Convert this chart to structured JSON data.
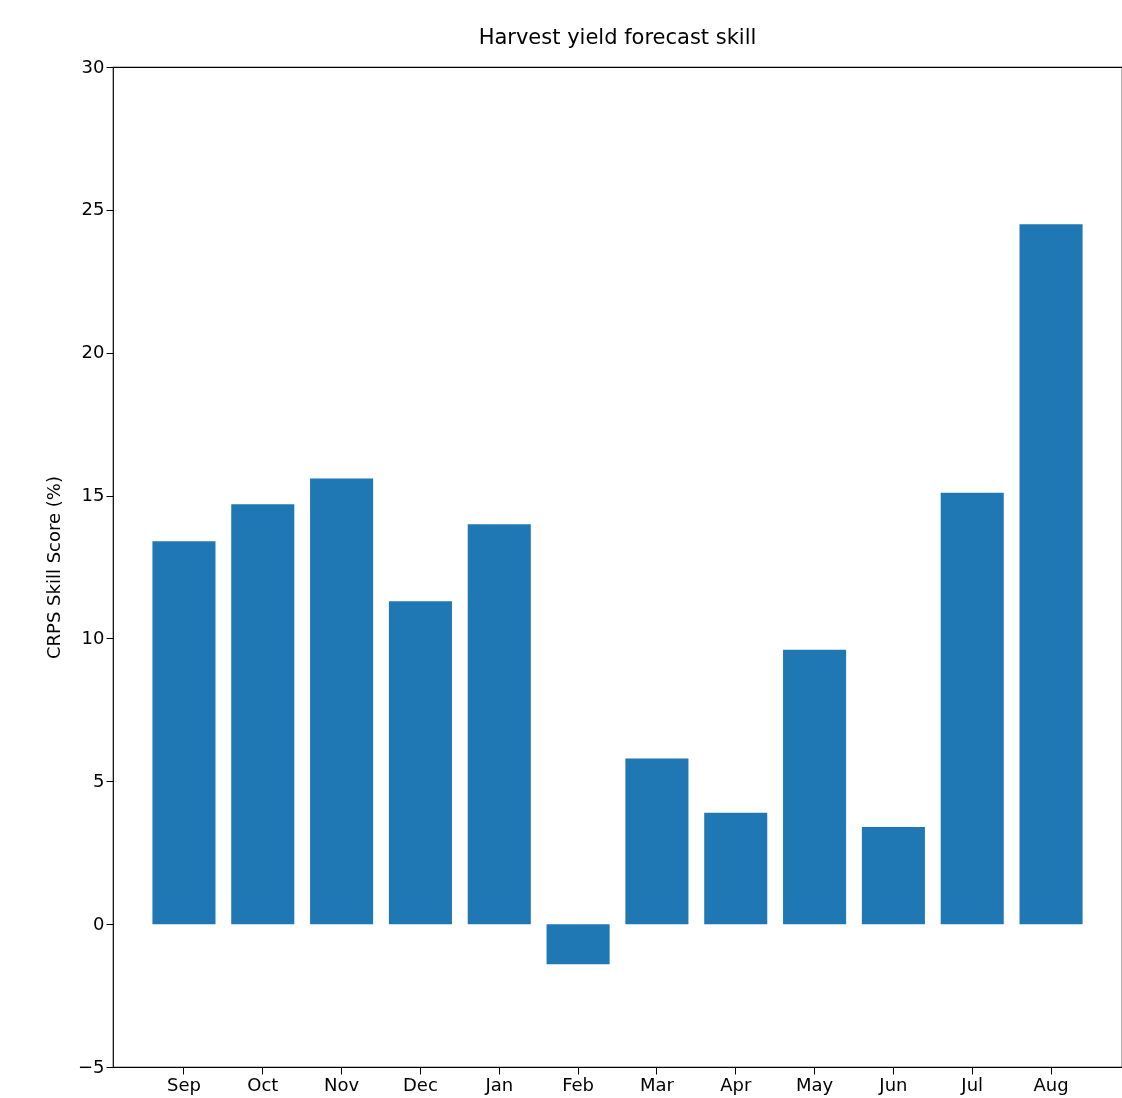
{
  "chart_data": {
    "type": "bar",
    "title": "Harvest yield forecast skill",
    "ylabel": "CRPS Skill Score (%)",
    "categories": [
      "Sep",
      "Oct",
      "Nov",
      "Dec",
      "Jan",
      "Feb",
      "Mar",
      "Apr",
      "May",
      "Jun",
      "Jul",
      "Aug"
    ],
    "values": [
      13.4,
      14.7,
      15.6,
      11.3,
      14.0,
      -1.4,
      5.8,
      3.9,
      9.6,
      3.4,
      15.1,
      24.5
    ],
    "color": "#1f77b4",
    "ylim": [
      -5,
      30
    ],
    "yticks": [
      -5,
      0,
      5,
      10,
      15,
      20,
      25,
      30
    ],
    "grid": false
  }
}
